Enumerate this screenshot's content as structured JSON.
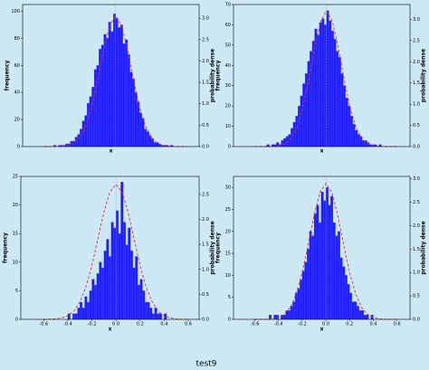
{
  "chart_data": [
    {
      "type": "histogram",
      "xlabel": "x",
      "ylabel": "frequency",
      "y2label": "probability dense",
      "color": "#1e1eff",
      "xlim": [
        -0.78,
        0.7
      ],
      "ylim": [
        0,
        105
      ],
      "yticks": [
        0,
        20,
        40,
        60,
        80,
        100
      ],
      "y2lim": [
        0,
        3.32
      ],
      "y2ticks": [
        {
          "value": 0,
          "label": "0.0"
        },
        0.5,
        {
          "value": 1,
          "label": "1.0"
        },
        1.5,
        {
          "value": 2,
          "label": "2.0"
        },
        2.5,
        {
          "value": 3,
          "label": "3.0"
        }
      ],
      "bins": [
        -0.6,
        -0.58,
        -0.56,
        -0.54,
        -0.52,
        -0.5,
        -0.48,
        -0.46,
        -0.44,
        -0.42,
        -0.4,
        -0.38,
        -0.36,
        -0.34,
        -0.32,
        -0.3,
        -0.28,
        -0.26,
        -0.24,
        -0.22,
        -0.2,
        -0.18,
        -0.16,
        -0.14,
        -0.12,
        -0.1,
        -0.08,
        -0.06,
        -0.04,
        -0.02,
        0,
        0.02,
        0.04,
        0.06,
        0.08,
        0.1,
        0.12,
        0.14,
        0.16,
        0.18,
        0.2,
        0.22,
        0.24,
        0.26,
        0.28,
        0.3,
        0.32,
        0.34,
        0.36,
        0.38,
        0.4,
        0.42,
        0.44,
        0.46,
        0.48,
        0.5,
        0.52,
        0.54,
        0.56,
        0.58,
        0.6
      ],
      "values": [
        0,
        0,
        0,
        0,
        1,
        0,
        1,
        1,
        1,
        2,
        2,
        4,
        4,
        7,
        9,
        13,
        19,
        23,
        32,
        37,
        44,
        57,
        60,
        72,
        75,
        83,
        80,
        92,
        85,
        98,
        95,
        88,
        90,
        76,
        79,
        68,
        55,
        50,
        40,
        33,
        25,
        21,
        13,
        11,
        8,
        6,
        3,
        3,
        2,
        1,
        1,
        1,
        0,
        1,
        0,
        0,
        0,
        0,
        0,
        0
      ],
      "density": {
        "color": "#e0302a",
        "axis": "y2",
        "x": [
          -0.6,
          -0.55,
          -0.5,
          -0.45,
          -0.4,
          -0.35,
          -0.3,
          -0.25,
          -0.2,
          -0.15,
          -0.1,
          -0.05,
          0,
          0.05,
          0.1,
          0.15,
          0.2,
          0.25,
          0.3,
          0.35,
          0.4,
          0.45,
          0.5,
          0.55,
          0.6
        ],
        "values": [
          0,
          0,
          0,
          0.01,
          0.03,
          0.08,
          0.21,
          0.48,
          0.93,
          1.57,
          2.27,
          2.83,
          3.05,
          2.83,
          2.27,
          1.57,
          0.93,
          0.48,
          0.21,
          0.08,
          0.03,
          0.01,
          0,
          0,
          0
        ]
      },
      "mean_line": 0
    },
    {
      "type": "histogram",
      "xlabel": "x",
      "ylabel": "frequency",
      "y2label": "probability dense",
      "color": "#1e1eff",
      "xlim": [
        -0.78,
        0.7
      ],
      "ylim": [
        0,
        70
      ],
      "yticks": [
        0,
        10,
        20,
        30,
        40,
        50,
        60,
        70
      ],
      "y2lim": [
        0,
        3.35
      ],
      "y2ticks": [
        {
          "value": 0,
          "label": "0.0"
        },
        0.5,
        {
          "value": 1,
          "label": "1.0"
        },
        1.5,
        {
          "value": 2,
          "label": "2.0"
        },
        2.5,
        {
          "value": 3,
          "label": "3.0"
        }
      ],
      "bins": [
        -0.6,
        -0.58,
        -0.56,
        -0.54,
        -0.52,
        -0.5,
        -0.48,
        -0.46,
        -0.44,
        -0.42,
        -0.4,
        -0.38,
        -0.36,
        -0.34,
        -0.32,
        -0.3,
        -0.28,
        -0.26,
        -0.24,
        -0.22,
        -0.2,
        -0.18,
        -0.16,
        -0.14,
        -0.12,
        -0.1,
        -0.08,
        -0.06,
        -0.04,
        -0.02,
        0,
        0.02,
        0.04,
        0.06,
        0.08,
        0.1,
        0.12,
        0.14,
        0.16,
        0.18,
        0.2,
        0.22,
        0.24,
        0.26,
        0.28,
        0.3,
        0.32,
        0.34,
        0.36,
        0.38,
        0.4,
        0.42,
        0.44,
        0.46,
        0.48,
        0.5,
        0.52,
        0.54,
        0.56,
        0.58,
        0.6
      ],
      "values": [
        0,
        0,
        0,
        0,
        0,
        1,
        0,
        1,
        1,
        2,
        1,
        3,
        4,
        5,
        6,
        9,
        12,
        15,
        20,
        25,
        31,
        36,
        42,
        47,
        52,
        58,
        55,
        61,
        63,
        60,
        67,
        62,
        57,
        53,
        47,
        44,
        36,
        30,
        24,
        20,
        15,
        11,
        8,
        6,
        5,
        3,
        3,
        2,
        1,
        1,
        1,
        0,
        1,
        0,
        0,
        0,
        0,
        0,
        0,
        0
      ],
      "density": {
        "color": "#e0302a",
        "axis": "y2",
        "x": [
          -0.6,
          -0.55,
          -0.5,
          -0.45,
          -0.4,
          -0.35,
          -0.3,
          -0.25,
          -0.2,
          -0.15,
          -0.1,
          -0.05,
          0,
          0.05,
          0.1,
          0.15,
          0.2,
          0.25,
          0.3,
          0.35,
          0.4,
          0.45,
          0.5,
          0.55,
          0.6
        ],
        "values": [
          0,
          0,
          0,
          0,
          0.02,
          0.06,
          0.18,
          0.43,
          0.89,
          1.56,
          2.32,
          2.95,
          3.2,
          2.95,
          2.32,
          1.56,
          0.89,
          0.43,
          0.18,
          0.06,
          0.02,
          0,
          0,
          0,
          0
        ]
      },
      "mean_line": 0
    },
    {
      "type": "histogram",
      "xlabel": "x",
      "ylabel": "frequency",
      "y2label": "probability dense",
      "color": "#1e1eff",
      "xlim": [
        -0.79,
        0.69
      ],
      "xticks": [
        -0.6,
        -0.4,
        -0.2,
        {
          "value": 0,
          "label": "0.0"
        },
        0.2,
        0.4,
        0.6
      ],
      "ylim": [
        0,
        25
      ],
      "yticks": [
        0,
        5,
        10,
        15,
        20,
        25
      ],
      "y2lim": [
        0,
        2.86
      ],
      "y2ticks": [
        {
          "value": 0,
          "label": "0.0"
        },
        0.5,
        {
          "value": 1,
          "label": "1.0"
        },
        1.5,
        {
          "value": 2,
          "label": "2.0"
        },
        2.5
      ],
      "bins": [
        -0.6,
        -0.58,
        -0.56,
        -0.54,
        -0.52,
        -0.5,
        -0.48,
        -0.46,
        -0.44,
        -0.42,
        -0.4,
        -0.38,
        -0.36,
        -0.34,
        -0.32,
        -0.3,
        -0.28,
        -0.26,
        -0.24,
        -0.22,
        -0.2,
        -0.18,
        -0.16,
        -0.14,
        -0.12,
        -0.1,
        -0.08,
        -0.06,
        -0.04,
        -0.02,
        0,
        0.02,
        0.04,
        0.06,
        0.08,
        0.1,
        0.12,
        0.14,
        0.16,
        0.18,
        0.2,
        0.22,
        0.24,
        0.26,
        0.28,
        0.3,
        0.32,
        0.34,
        0.36,
        0.38,
        0.4,
        0.42,
        0.44,
        0.46,
        0.48,
        0.5,
        0.52,
        0.54,
        0.56,
        0.58,
        0.6
      ],
      "values": [
        0,
        0,
        0,
        0,
        0,
        0,
        0,
        0,
        0,
        0,
        1,
        0,
        1,
        1,
        2,
        3,
        2,
        4,
        3,
        5,
        7,
        6,
        8,
        10,
        9,
        12,
        14,
        11,
        17,
        16,
        19,
        15,
        24,
        17,
        13,
        16,
        12,
        9,
        11,
        6,
        7,
        5,
        3,
        3,
        2,
        1,
        2,
        1,
        1,
        0,
        1,
        0,
        0,
        0,
        0,
        0,
        0,
        0,
        0,
        0
      ],
      "density": {
        "color": "#e0302a",
        "axis": "y2",
        "x": [
          -0.6,
          -0.55,
          -0.5,
          -0.45,
          -0.4,
          -0.35,
          -0.3,
          -0.25,
          -0.2,
          -0.15,
          -0.1,
          -0.05,
          0,
          0.05,
          0.1,
          0.15,
          0.2,
          0.25,
          0.3,
          0.35,
          0.4,
          0.45,
          0.5,
          0.55,
          0.6
        ],
        "values": [
          0,
          0,
          0.01,
          0.03,
          0.07,
          0.16,
          0.35,
          0.65,
          1.08,
          1.61,
          2.15,
          2.55,
          2.7,
          2.55,
          2.15,
          1.61,
          1.08,
          0.65,
          0.35,
          0.16,
          0.07,
          0.03,
          0.01,
          0,
          0
        ]
      },
      "mean_line": 0
    },
    {
      "type": "histogram",
      "xlabel": "x",
      "ylabel": "frequency",
      "y2label": "probability dense",
      "color": "#1e1eff",
      "xlim": [
        -0.78,
        0.71
      ],
      "xticks": [
        -0.6,
        -0.4,
        -0.2,
        {
          "value": 0,
          "label": "0.0"
        },
        0.2,
        0.4,
        0.6
      ],
      "ylim": [
        0,
        32.5
      ],
      "yticks": [
        0,
        5,
        10,
        15,
        20,
        25,
        30
      ],
      "y2lim": [
        0,
        3.05
      ],
      "y2ticks": [
        {
          "value": 0,
          "label": "0.0"
        },
        0.5,
        {
          "value": 1,
          "label": "1.0"
        },
        1.5,
        {
          "value": 2,
          "label": "2.0"
        },
        2.5,
        {
          "value": 3,
          "label": "3.0"
        }
      ],
      "bins": [
        -0.6,
        -0.58,
        -0.56,
        -0.54,
        -0.52,
        -0.5,
        -0.48,
        -0.46,
        -0.44,
        -0.42,
        -0.4,
        -0.38,
        -0.36,
        -0.34,
        -0.32,
        -0.3,
        -0.28,
        -0.26,
        -0.24,
        -0.22,
        -0.2,
        -0.18,
        -0.16,
        -0.14,
        -0.12,
        -0.1,
        -0.08,
        -0.06,
        -0.04,
        -0.02,
        0,
        0.02,
        0.04,
        0.06,
        0.08,
        0.1,
        0.12,
        0.14,
        0.16,
        0.18,
        0.2,
        0.22,
        0.24,
        0.26,
        0.28,
        0.3,
        0.32,
        0.34,
        0.36,
        0.38,
        0.4,
        0.42,
        0.44,
        0.46,
        0.48,
        0.5,
        0.52,
        0.54,
        0.56,
        0.58,
        0.6
      ],
      "values": [
        0,
        0,
        0,
        0,
        0,
        0,
        1,
        0,
        1,
        1,
        0,
        1,
        1,
        2,
        2,
        3,
        4,
        6,
        7,
        9,
        11,
        13,
        16,
        20,
        19,
        24,
        26,
        22,
        29,
        27,
        30,
        26,
        28,
        22,
        19,
        20,
        14,
        12,
        10,
        8,
        6,
        4,
        4,
        3,
        2,
        2,
        1,
        1,
        0,
        1,
        0,
        0,
        0,
        0,
        0,
        0,
        0,
        0,
        0,
        0
      ],
      "density": {
        "color": "#e0302a",
        "axis": "y2",
        "x": [
          -0.6,
          -0.55,
          -0.5,
          -0.45,
          -0.4,
          -0.35,
          -0.3,
          -0.25,
          -0.2,
          -0.15,
          -0.1,
          -0.05,
          0,
          0.05,
          0.1,
          0.15,
          0.2,
          0.25,
          0.3,
          0.35,
          0.4,
          0.45,
          0.5,
          0.55,
          0.6
        ],
        "values": [
          0,
          0,
          0,
          0.01,
          0.04,
          0.11,
          0.26,
          0.55,
          1.0,
          1.59,
          2.22,
          2.71,
          2.9,
          2.71,
          2.22,
          1.59,
          1.0,
          0.55,
          0.26,
          0.11,
          0.04,
          0.01,
          0,
          0,
          0
        ]
      },
      "mean_line": 0
    }
  ],
  "caption": "test9"
}
